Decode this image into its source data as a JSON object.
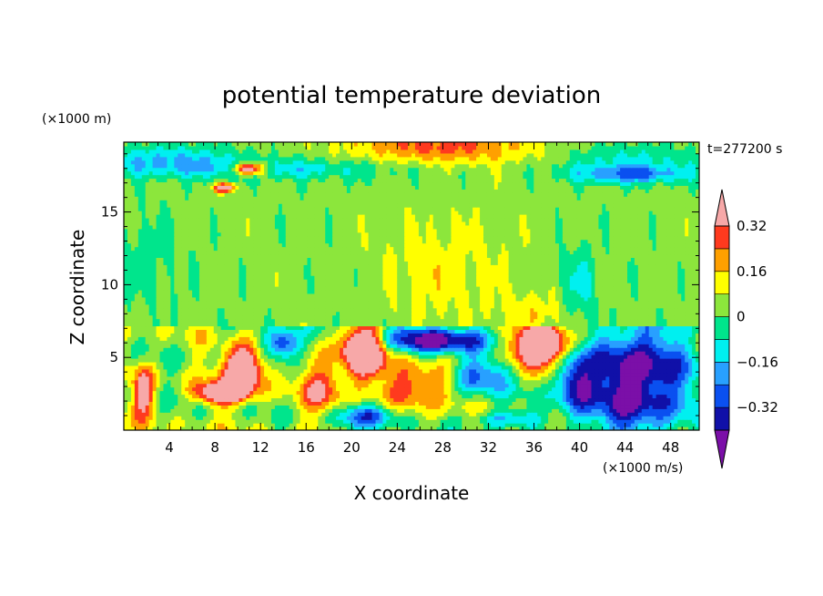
{
  "chart_data": {
    "type": "heatmap",
    "title": "potential temperature deviation",
    "xlabel": "X coordinate",
    "ylabel": "Z coordinate",
    "x_unit": "(×1000 m/s)",
    "y_unit": "(×1000 m)",
    "time_label": "t=277200 s",
    "xlim": [
      0,
      50.5
    ],
    "ylim": [
      0,
      19.8
    ],
    "x_ticks": [
      4,
      8,
      12,
      16,
      20,
      24,
      28,
      32,
      36,
      40,
      44,
      48
    ],
    "y_ticks": [
      5,
      10,
      15
    ],
    "grid": false,
    "legend_placement": "right",
    "colorbar": {
      "levels": [
        -0.4,
        -0.32,
        -0.24,
        -0.16,
        -0.08,
        0,
        0.08,
        0.16,
        0.24,
        0.32,
        0.4
      ],
      "tick_labels": [
        "0.32",
        "0.16",
        "0",
        "−0.16",
        "−0.32"
      ],
      "tick_values": [
        0.32,
        0.16,
        0,
        -0.16,
        -0.32
      ],
      "colors": [
        "#7b0fa8",
        "#1010a8",
        "#0a50f0",
        "#28a0ff",
        "#00f0f0",
        "#00e58c",
        "#8ce63c",
        "#ffff00",
        "#ffa000",
        "#ff3a1e",
        "#f7a8a8"
      ]
    },
    "regions": {
      "upper_layer_base": 0.03,
      "interface_height": 7.2,
      "warm_blobs": [
        {
          "x": 10.5,
          "z": 4.2,
          "value": 0.45
        },
        {
          "x": 21.0,
          "z": 5.5,
          "value": 0.45
        },
        {
          "x": 36.5,
          "z": 5.8,
          "value": 0.45
        },
        {
          "x": 11.0,
          "z": 18.0,
          "value": 0.42
        }
      ],
      "cold_regions": [
        {
          "x": 44.5,
          "z": 3.5,
          "value": -0.45
        },
        {
          "x": 28.5,
          "z": 6.0,
          "value": -0.4
        },
        {
          "x": 14.0,
          "z": 6.0,
          "value": -0.38
        }
      ]
    }
  }
}
